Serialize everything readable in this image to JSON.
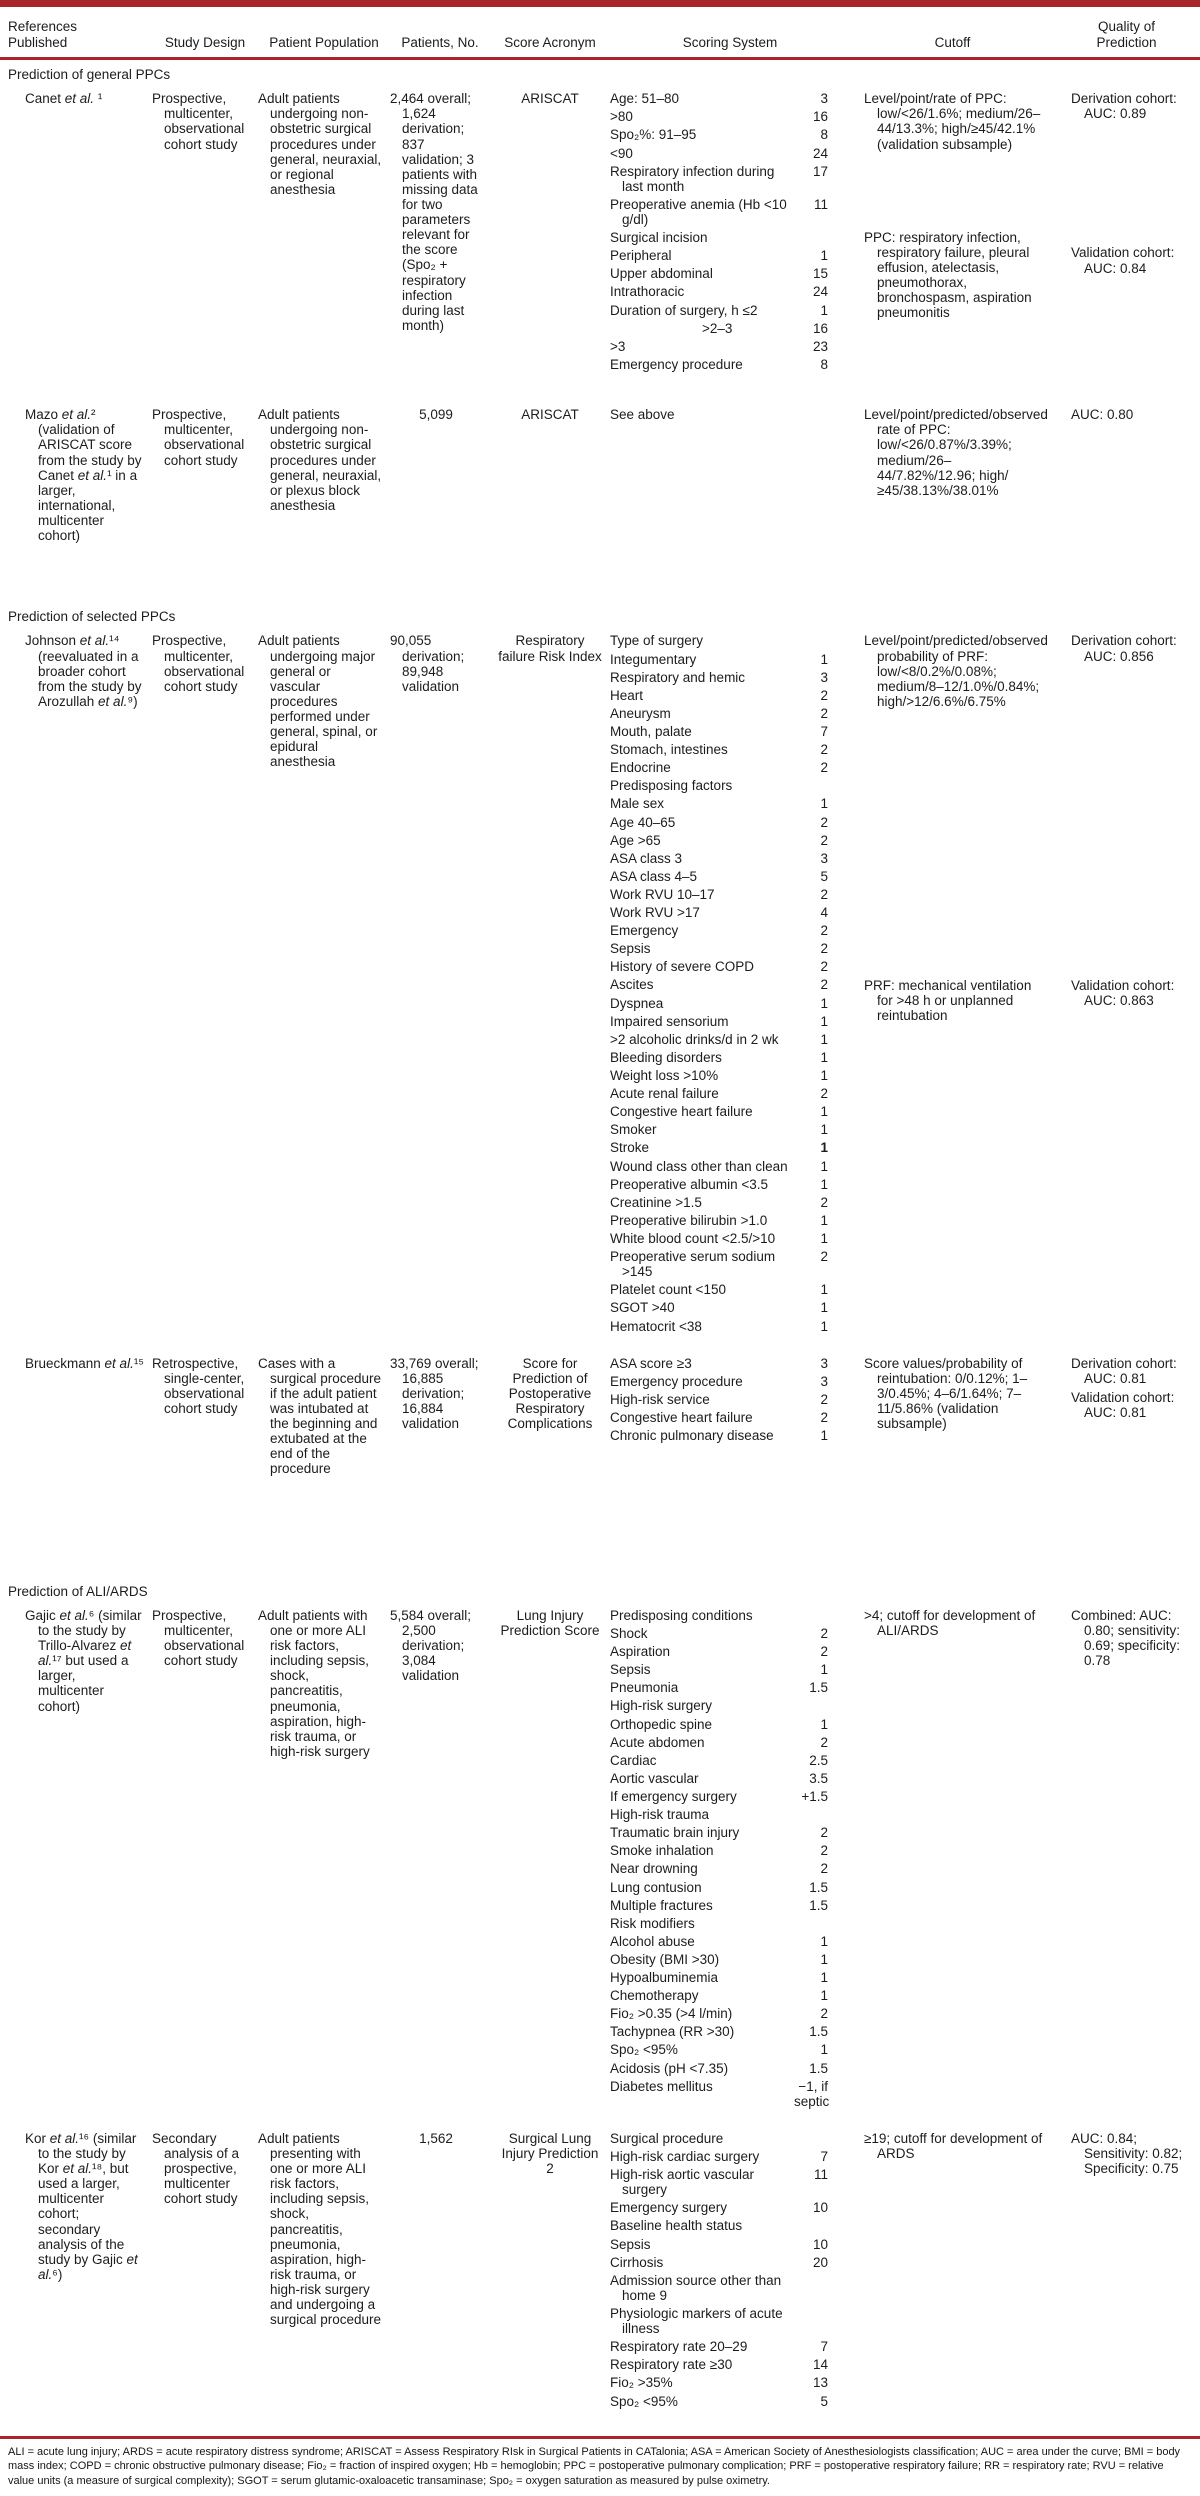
{
  "columns": [
    "References\nPublished",
    "Study Design",
    "Patient Population",
    "Patients, No.",
    "Score Acronym",
    "Scoring System",
    "Cutoff",
    "Quality of\nPrediction"
  ],
  "rule_color": "#a8262a",
  "sections": [
    {
      "title": "Prediction of general PPCs",
      "studies": [
        {
          "reference": "Canet et al. ¹",
          "design": "Prospective, multicenter, observational cohort study",
          "population": "Adult patients undergoing non-obstetric surgical procedures under general, neuraxial, or regional anesthesia",
          "patients": "2,464 overall; 1,624 derivation; 837 validation; 3 patients with missing data for two parameters relevant for the score (Spo₂ + respiratory infection during last month)",
          "acronym": "ARISCAT",
          "minh": 316,
          "scoring": [
            {
              "l": "Age: 51–80",
              "v": "3"
            },
            {
              "l": ">80",
              "v": "16"
            },
            {
              "l": "Spo₂%: 91–95",
              "v": "8"
            },
            {
              "l": "<90",
              "v": "24"
            },
            {
              "l": "Respiratory infection during last month",
              "v": "17"
            },
            {
              "l": "Preoperative anemia (Hb <10 g/dl)",
              "v": "11"
            },
            {
              "l": "Surgical incision",
              "v": ""
            },
            {
              "l": "Peripheral",
              "v": "1"
            },
            {
              "l": "Upper abdominal",
              "v": "15"
            },
            {
              "l": "Intrathoracic",
              "v": "24"
            },
            {
              "l": "Duration of surgery, h ≤2",
              "v": "1"
            },
            {
              "l": ">2–3",
              "v": "16",
              "in": 1
            },
            {
              "l": ">3",
              "v": "23"
            },
            {
              "l": "Emergency procedure",
              "v": "8"
            }
          ],
          "cutoff": [
            {
              "text": "Level/point/rate of PPC: low/<26/1.6%; medium/26–44/13.3%; high/≥45/42.1% (validation subsample)",
              "gap": 0
            },
            {
              "text": "PPC: respiratory infection, respiratory failure, pleural effusion, atelectasis, pneumothorax, bronchospasm, aspiration pneumonitis",
              "gap": 78
            }
          ],
          "quality": [
            {
              "text": "Derivation cohort: AUC: 0.89",
              "gap": 0
            },
            {
              "text": "Validation cohort: AUC: 0.84",
              "gap": 124
            }
          ]
        },
        {
          "reference": "Mazo et al.² (validation of ARISCAT score from the study by Canet et al.¹ in a larger, international, multicenter cohort)",
          "design": "Prospective, multicenter, observational cohort study",
          "population": "Adult patients undergoing non-obstetric surgical procedures under general, neuraxial, or plexus block anesthesia",
          "patients": "5,099",
          "acronym": "ARISCAT",
          "minh": 200,
          "scoring": [
            {
              "l": "See above",
              "v": ""
            }
          ],
          "cutoff": [
            {
              "text": "Level/point/predicted/observed rate of PPC: low/<26/0.87%/3.39%; medium/26–44/7.82%/12.96; high/≥45/38.13%/38.01%",
              "gap": 0
            }
          ],
          "quality": [
            {
              "text": "AUC: 0.80",
              "gap": 0
            }
          ]
        }
      ]
    },
    {
      "title": "Prediction of selected PPCs",
      "studies": [
        {
          "reference": "Johnson et al.¹⁴ (reevaluated in a broader cohort from the study by Arozullah et al.⁹)",
          "design": "Prospective, multicenter, observational cohort study",
          "population": "Adult patients undergoing major general or vascular procedures performed under general, spinal, or epidural anesthesia",
          "patients": "90,055 derivation; 89,948 validation",
          "acronym": "Respiratory failure Risk Index",
          "minh": 0,
          "scoring": [
            {
              "l": "Type of surgery",
              "v": ""
            },
            {
              "l": "Integumentary",
              "v": "1"
            },
            {
              "l": "Respiratory and hemic",
              "v": "3"
            },
            {
              "l": "Heart",
              "v": "2"
            },
            {
              "l": "Aneurysm",
              "v": "2"
            },
            {
              "l": "Mouth, palate",
              "v": "7"
            },
            {
              "l": "Stomach, intestines",
              "v": "2"
            },
            {
              "l": "Endocrine",
              "v": "2"
            },
            {
              "l": "Predisposing factors",
              "v": ""
            },
            {
              "l": "Male sex",
              "v": "1"
            },
            {
              "l": "Age 40–65",
              "v": "2"
            },
            {
              "l": "Age >65",
              "v": "2"
            },
            {
              "l": "ASA class 3",
              "v": "3"
            },
            {
              "l": "ASA class 4–5",
              "v": "5"
            },
            {
              "l": "Work RVU 10–17",
              "v": "2"
            },
            {
              "l": "Work RVU >17",
              "v": "4"
            },
            {
              "l": "Emergency",
              "v": "2"
            },
            {
              "l": "Sepsis",
              "v": "2"
            },
            {
              "l": "History of severe COPD",
              "v": "2"
            },
            {
              "l": "Ascites",
              "v": "2"
            },
            {
              "l": "Dyspnea",
              "v": "1"
            },
            {
              "l": "Impaired sensorium",
              "v": "1"
            },
            {
              "l": ">2 alcoholic drinks/d in 2 wk",
              "v": "1"
            },
            {
              "l": "Bleeding disorders",
              "v": "1"
            },
            {
              "l": "Weight loss >10%",
              "v": "1"
            },
            {
              "l": "Acute renal failure",
              "v": "2"
            },
            {
              "l": "Congestive heart failure",
              "v": "1"
            },
            {
              "l": "Smoker",
              "v": "1"
            },
            {
              "l": "Stroke",
              "v": "1",
              "b": 1
            },
            {
              "l": "Wound class other than clean",
              "v": "1"
            },
            {
              "l": "Preoperative albumin <3.5",
              "v": "1"
            },
            {
              "l": "Creatinine >1.5",
              "v": "2"
            },
            {
              "l": "Preoperative bilirubin >1.0",
              "v": "1"
            },
            {
              "l": "White blood count <2.5/>10",
              "v": "1"
            },
            {
              "l": "Preoperative serum sodium >145",
              "v": "2"
            },
            {
              "l": "Platelet count <150",
              "v": "1"
            },
            {
              "l": "SGOT >40",
              "v": "1"
            },
            {
              "l": "Hematocrit <38",
              "v": "1"
            }
          ],
          "cutoff": [
            {
              "text": "Level/point/predicted/observed probability of PRF: low/<8/0.2%/0.08%; medium/8–12/1.0%/0.84%; high/>12/6.6%/6.75%",
              "gap": 0
            },
            {
              "text": "PRF: mechanical ventilation for >48 h or unplanned reintubation",
              "gap": 269
            }
          ],
          "quality": [
            {
              "text": "Derivation cohort: AUC: 0.856",
              "gap": 0
            },
            {
              "text": "Validation cohort: AUC: 0.863",
              "gap": 314
            }
          ]
        },
        {
          "reference": "Brueckmann et al.¹⁵",
          "design": "Retrospective, single-center, observational cohort study",
          "population": "Cases with a surgical procedure if the adult patient was intubated at the beginning and extubated at the end of the procedure",
          "patients": "33,769 overall; 16,885 derivation; 16,884 validation",
          "acronym": "Score for Prediction of Postoperative Respiratory Complications",
          "minh": 226,
          "scoring": [
            {
              "l": "ASA score ≥3",
              "v": "3"
            },
            {
              "l": "Emergency procedure",
              "v": "3"
            },
            {
              "l": "High-risk service",
              "v": "2"
            },
            {
              "l": "Congestive heart failure",
              "v": "2"
            },
            {
              "l": "Chronic pulmonary disease",
              "v": "1"
            }
          ],
          "cutoff": [
            {
              "text": "Score values/probability of reintubation: 0/0.12%; 1–3/0.45%; 4–6/1.64%; 7–11/5.86% (validation subsample)",
              "gap": 0
            }
          ],
          "quality": [
            {
              "text": "Derivation cohort: AUC: 0.81",
              "gap": 0
            },
            {
              "text": "Validation cohort: AUC: 0.81",
              "gap": 4
            }
          ]
        }
      ]
    },
    {
      "title": "Prediction of ALI/ARDS",
      "studies": [
        {
          "reference": "Gajic et al.⁶ (similar to the study by Trillo-Alvarez et al.¹⁷ but used a larger, multicenter cohort)",
          "design": "Prospective, multicenter, observational cohort study",
          "population": "Adult patients with one or more ALI risk factors, including sepsis, shock, pancreatitis, pneumonia, aspiration, high-risk trauma, or high-risk surgery",
          "patients": "5,584 overall; 2,500 derivation; 3,084 validation",
          "acronym": "Lung Injury Prediction Score",
          "minh": 506,
          "scoring": [
            {
              "l": "Predisposing conditions",
              "v": ""
            },
            {
              "l": "Shock",
              "v": "2"
            },
            {
              "l": "Aspiration",
              "v": "2"
            },
            {
              "l": "Sepsis",
              "v": "1"
            },
            {
              "l": "Pneumonia",
              "v": "1.5"
            },
            {
              "l": "High-risk surgery",
              "v": ""
            },
            {
              "l": "Orthopedic spine",
              "v": "1"
            },
            {
              "l": "Acute abdomen",
              "v": "2"
            },
            {
              "l": "Cardiac",
              "v": "2.5"
            },
            {
              "l": "Aortic vascular",
              "v": "3.5"
            },
            {
              "l": "If emergency surgery",
              "v": "+1.5"
            },
            {
              "l": "High-risk trauma",
              "v": ""
            },
            {
              "l": "Traumatic brain injury",
              "v": "2"
            },
            {
              "l": "Smoke inhalation",
              "v": "2"
            },
            {
              "l": "Near drowning",
              "v": "2"
            },
            {
              "l": "Lung contusion",
              "v": "1.5"
            },
            {
              "l": "Multiple fractures",
              "v": "1.5"
            },
            {
              "l": "Risk modifiers",
              "v": ""
            },
            {
              "l": "Alcohol abuse",
              "v": "1"
            },
            {
              "l": "Obesity (BMI >30)",
              "v": "1"
            },
            {
              "l": "Hypoalbuminemia",
              "v": "1"
            },
            {
              "l": "Chemotherapy",
              "v": "1"
            },
            {
              "l": "Fio₂ >0.35 (>4 l/min)",
              "v": "2"
            },
            {
              "l": "Tachypnea (RR >30)",
              "v": "1.5"
            },
            {
              "l": "Spo₂ <95%",
              "v": "1"
            },
            {
              "l": "Acidosis (pH <7.35)",
              "v": "1.5"
            },
            {
              "l": "Diabetes mellitus",
              "v": "−1, if septic"
            }
          ],
          "cutoff": [
            {
              "text": ">4; cutoff for development of ALI/ARDS",
              "gap": 0
            }
          ],
          "quality": [
            {
              "text": "Combined: AUC: 0.80; sensitivity: 0.69; specificity: 0.78",
              "gap": 0
            }
          ]
        },
        {
          "reference": "Kor et al.¹⁶ (similar to the study by Kor et al.¹⁸, but used a larger, multicenter cohort; secondary analysis of the study by Gajic et al.⁶)",
          "design": "Secondary analysis of a prospective, multicenter cohort study",
          "population": "Adult patients presenting with one or more ALI risk factors, including sepsis, shock, pancreatitis, pneumonia, aspiration, high-risk trauma, or high-risk surgery and undergoing a surgical procedure",
          "patients": "1,562",
          "acronym": "Surgical Lung Injury Prediction 2",
          "minh": 306,
          "scoring": [
            {
              "l": "Surgical procedure",
              "v": ""
            },
            {
              "l": "High-risk cardiac surgery",
              "v": "7"
            },
            {
              "l": "High-risk aortic vascular surgery",
              "v": "11"
            },
            {
              "l": "Emergency surgery",
              "v": "10"
            },
            {
              "l": "Baseline health status",
              "v": ""
            },
            {
              "l": "Sepsis",
              "v": "10"
            },
            {
              "l": "Cirrhosis",
              "v": "20"
            },
            {
              "l": "Admission source other than home 9",
              "v": ""
            },
            {
              "l": "Physiologic markers of acute illness",
              "v": ""
            },
            {
              "l": "Respiratory rate 20–29",
              "v": "7"
            },
            {
              "l": "Respiratory rate ≥30",
              "v": "14"
            },
            {
              "l": "Fio₂ >35%",
              "v": "13"
            },
            {
              "l": "Spo₂ <95%",
              "v": "5"
            }
          ],
          "cutoff": [
            {
              "text": "≥19; cutoff for development of ARDS",
              "gap": 0
            }
          ],
          "quality": [
            {
              "text": "AUC: 0.84; Sensitivity: 0.82; Specificity: 0.75",
              "gap": 0
            }
          ]
        }
      ]
    }
  ],
  "footnote": "ALI = acute lung injury; ARDS = acute respiratory distress syndrome; ARISCAT = Assess Respiratory RIsk in Surgical Patients in CATalonia; ASA = American Society of Anesthesiologists classification; AUC = area under the curve; BMI = body mass index; COPD = chronic obstructive pulmonary disease; Fio₂ = fraction of inspired oxygen; Hb = hemoglobin; PPC = postoperative pulmonary complication; PRF = postoperative respiratory failure; RR = respiratory rate; RVU = relative value units (a measure of surgical complexity); SGOT = serum glutamic-oxaloacetic transaminase; Spo₂ = oxygen saturation as measured by pulse oximetry."
}
